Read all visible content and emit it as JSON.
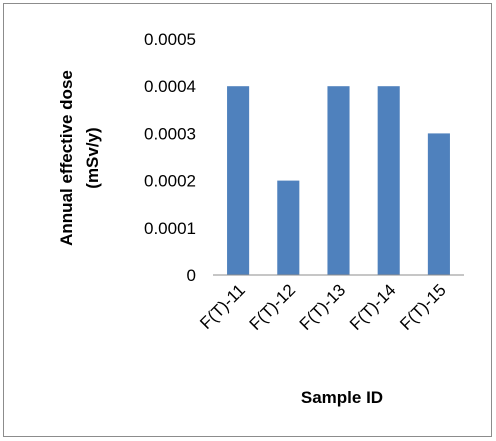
{
  "chart_data": {
    "type": "bar",
    "categories": [
      "F(T)-11",
      "F(T)-12",
      "F(T)-13",
      "F(T)-14",
      "F(T)-15"
    ],
    "values": [
      0.0004,
      0.0002,
      0.0004,
      0.0004,
      0.0003
    ],
    "ylim": [
      0,
      0.0005
    ],
    "yticks": [
      "0",
      "0.0001",
      "0.0002",
      "0.0003",
      "0.0004",
      "0.0005"
    ],
    "xlabel": "Sample ID",
    "ylabel_line1": "Annual effective dose",
    "ylabel_line2": "(mSv/y)",
    "grid": false,
    "legend": "none",
    "bar_color": "#4f81bd"
  }
}
